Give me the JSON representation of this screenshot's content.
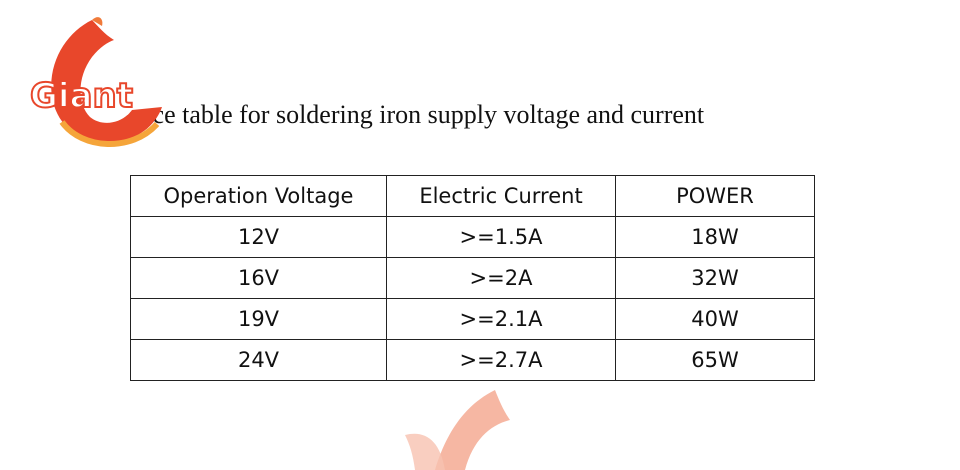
{
  "logo": {
    "text": "Giant"
  },
  "title": "ence table for soldering iron supply voltage and current",
  "table": {
    "header": [
      "Operation Voltage",
      "Electric Current",
      "POWER"
    ],
    "rows": [
      [
        "12V",
        ">=1.5A",
        "18W"
      ],
      [
        "16V",
        ">=2A",
        "32W"
      ],
      [
        "19V",
        ">=2.1A",
        "40W"
      ],
      [
        "24V",
        ">=2.7A",
        "65W"
      ]
    ]
  }
}
